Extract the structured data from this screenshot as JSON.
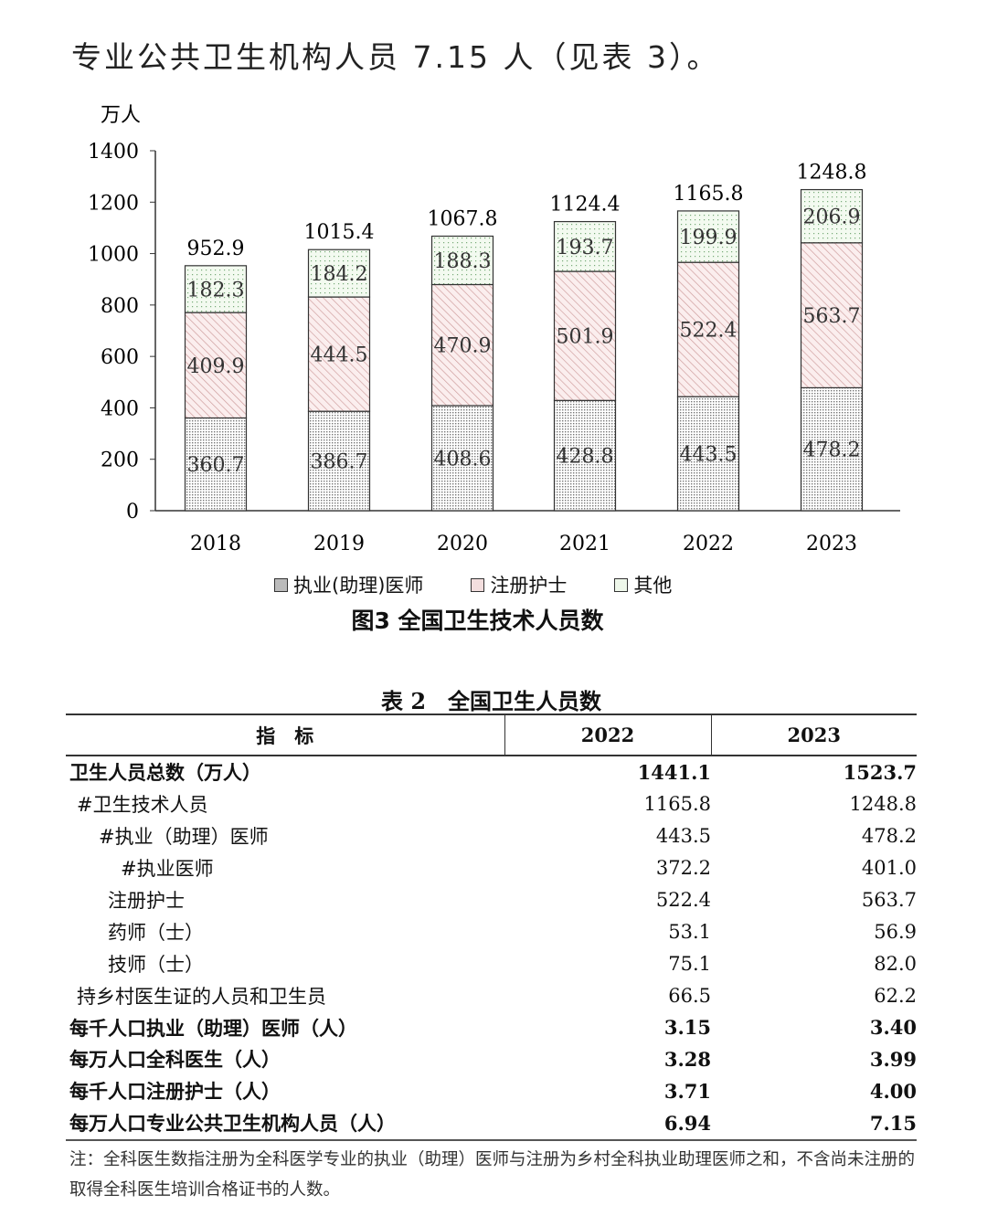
{
  "intro_text": "专业公共卫生机构人员 7.15 人（见表 3）。",
  "chart_data": {
    "type": "bar",
    "stacked": true,
    "title": "图3 全国卫生技术人员数",
    "ylabel": "万人",
    "ylim": [
      0,
      1400
    ],
    "yticks": [
      0,
      200,
      400,
      600,
      800,
      1000,
      1200,
      1400
    ],
    "categories": [
      "2018",
      "2019",
      "2020",
      "2021",
      "2022",
      "2023"
    ],
    "series": [
      {
        "name": "执业(助理)医师",
        "values": [
          360.7,
          386.7,
          408.6,
          428.8,
          443.5,
          478.2
        ],
        "pattern": "dots-dense"
      },
      {
        "name": "注册护士",
        "values": [
          409.9,
          444.5,
          470.9,
          501.9,
          522.4,
          563.7
        ],
        "pattern": "diagonal"
      },
      {
        "name": "其他",
        "values": [
          182.3,
          184.2,
          188.3,
          193.7,
          199.9,
          206.9
        ],
        "pattern": "dots-sparse"
      }
    ],
    "totals": [
      952.9,
      1015.4,
      1067.8,
      1124.4,
      1165.8,
      1248.8
    ],
    "legend": "bottom",
    "grid": false
  },
  "table": {
    "title": "表 2　全国卫生人员数",
    "headers": [
      "指　标",
      "2022",
      "2023"
    ],
    "rows": [
      {
        "label": "卫生人员总数（万人）",
        "v2022": "1441.1",
        "v2023": "1523.7",
        "bold": true,
        "indent": 0
      },
      {
        "label": "#卫生技术人员",
        "v2022": "1165.8",
        "v2023": "1248.8",
        "bold": false,
        "indent": 1
      },
      {
        "label": "#执业（助理）医师",
        "v2022": "443.5",
        "v2023": "478.2",
        "bold": false,
        "indent": 2
      },
      {
        "label": "#执业医师",
        "v2022": "372.2",
        "v2023": "401.0",
        "bold": false,
        "indent": 3
      },
      {
        "label": "注册护士",
        "v2022": "522.4",
        "v2023": "563.7",
        "bold": false,
        "indent": 2
      },
      {
        "label": "药师（士）",
        "v2022": "53.1",
        "v2023": "56.9",
        "bold": false,
        "indent": 2
      },
      {
        "label": "技师（士）",
        "v2022": "75.1",
        "v2023": "82.0",
        "bold": false,
        "indent": 2
      },
      {
        "label": "持乡村医生证的人员和卫生员",
        "v2022": "66.5",
        "v2023": "62.2",
        "bold": false,
        "indent": 1
      },
      {
        "label": "每千人口执业（助理）医师（人）",
        "v2022": "3.15",
        "v2023": "3.40",
        "bold": true,
        "indent": 0
      },
      {
        "label": "每万人口全科医生（人）",
        "v2022": "3.28",
        "v2023": "3.99",
        "bold": true,
        "indent": 0
      },
      {
        "label": "每千人口注册护士（人）",
        "v2022": "3.71",
        "v2023": "4.00",
        "bold": true,
        "indent": 0
      },
      {
        "label": "每万人口专业公共卫生机构人员（人）",
        "v2022": "6.94",
        "v2023": "7.15",
        "bold": true,
        "indent": 0
      }
    ],
    "note": "注：全科医生数指注册为全科医学专业的执业（助理）医师与注册为乡村全科执业助理医师之和，不含尚未注册的取得全科医生培训合格证书的人数。"
  }
}
